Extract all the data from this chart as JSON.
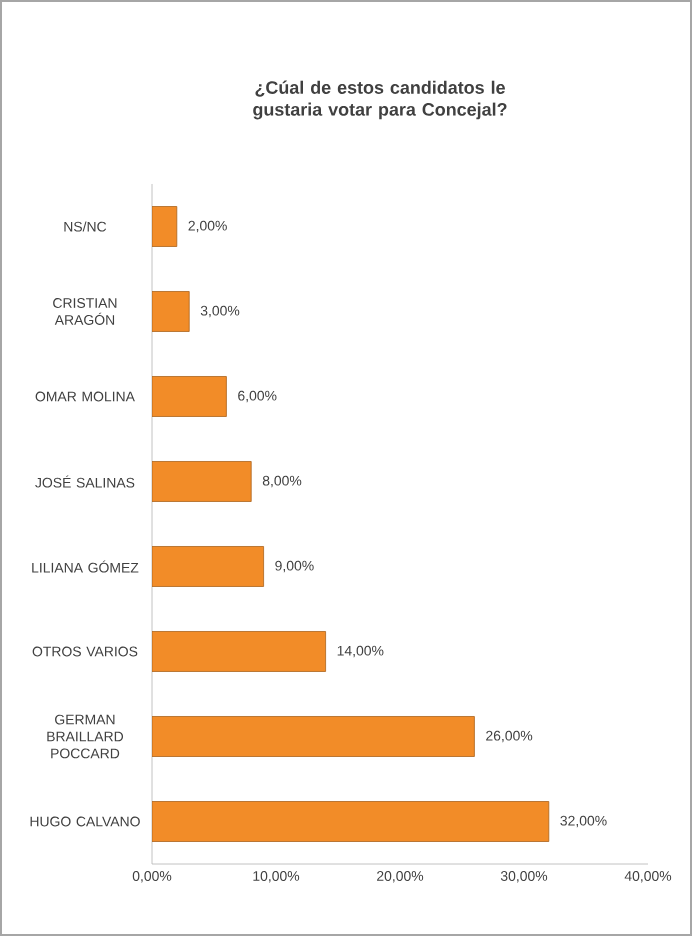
{
  "chart_data": {
    "type": "bar",
    "orientation": "horizontal",
    "title": "¿Cúal de estos candidatos le gustaria votar para Concejal?",
    "categories": [
      "NS/NC",
      "CRISTIAN ARAGÓN",
      "OMAR MOLINA",
      "JOSÉ SALINAS",
      "LILIANA GÓMEZ",
      "OTROS VARIOS",
      "GERMAN BRAILLARD POCCARD",
      "HUGO CALVANO"
    ],
    "values": [
      2,
      3,
      6,
      8,
      9,
      14,
      26,
      32
    ],
    "value_labels": [
      "2,00%",
      "3,00%",
      "6,00%",
      "8,00%",
      "9,00%",
      "14,00%",
      "26,00%",
      "32,00%"
    ],
    "color": "#f28c28",
    "xlim": [
      0,
      40
    ],
    "xticks": [
      {
        "value": 0,
        "label": "0,00%"
      },
      {
        "value": 10,
        "label": "10,00%"
      },
      {
        "value": 20,
        "label": "20,00%"
      },
      {
        "value": 30,
        "label": "30,00%"
      },
      {
        "value": 40,
        "label": "40,00%"
      }
    ]
  }
}
